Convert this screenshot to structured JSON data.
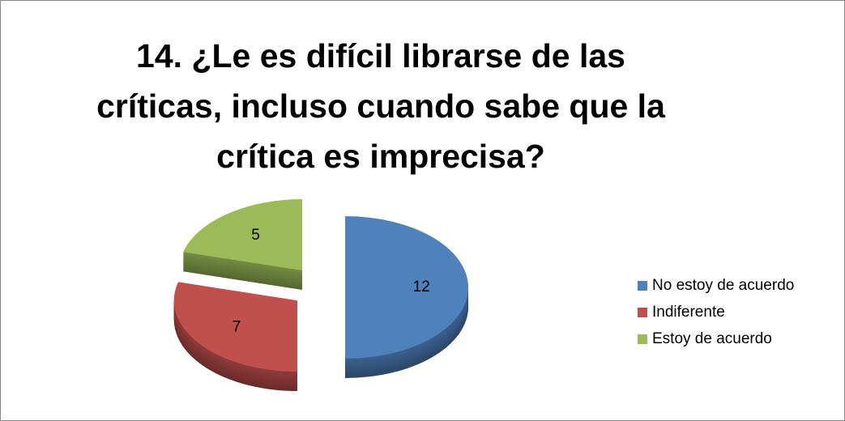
{
  "chart_data": {
    "type": "pie",
    "title": "14. ¿Le es difícil librarse de las críticas, incluso cuando sabe que la crítica es imprecisa?",
    "categories": [
      "No estoy de acuerdo",
      "Indiferente",
      "Estoy de acuerdo"
    ],
    "values": [
      12,
      7,
      5
    ],
    "colors": [
      "#4f81bd",
      "#c0504d",
      "#9bbb59"
    ],
    "legend": "right"
  }
}
